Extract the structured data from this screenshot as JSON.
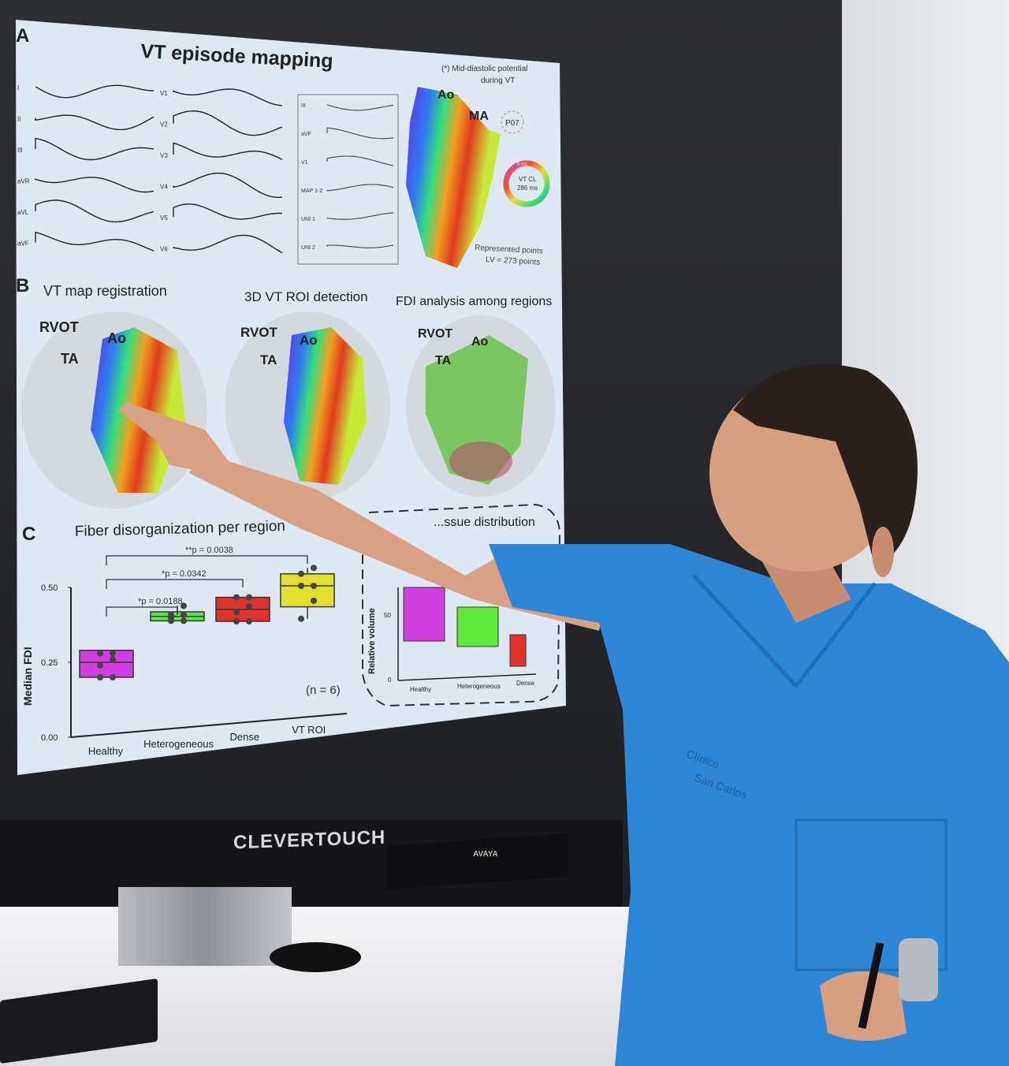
{
  "tv": {
    "brand": "CLEVERTOUCH",
    "soundbar_brand": "AVAYA"
  },
  "slide": {
    "panel_a": {
      "letter": "A",
      "title": "VT episode mapping",
      "leads_left": [
        "I",
        "II",
        "III",
        "aVR",
        "aVL",
        "aVF"
      ],
      "leads_right": [
        "V1",
        "V2",
        "V3",
        "V4",
        "V5",
        "V6"
      ],
      "inset_labels": [
        "III",
        "aVF",
        "V1",
        "MAP 1-2",
        "UNI 1",
        "UNI 2"
      ],
      "note_line1": "(*) Mid-diastolic  potential",
      "note_line2": "during VT",
      "label_ao": "Ao",
      "label_ma": "MA",
      "label_p07": "P07",
      "ring_top": "0 ms",
      "ring_line1": "VT CL",
      "ring_line2": "286 ms",
      "points_line1": "Represented points",
      "points_line2": "LV = 273 points"
    },
    "panel_b": {
      "letter": "B",
      "titles": [
        "VT map registration",
        "3D VT ROI detection",
        "FDI analysis among regions"
      ],
      "labels": {
        "rvot": "RVOT",
        "ta": "TA",
        "ao": "Ao"
      }
    },
    "panel_c": {
      "letter": "C",
      "title": "Fiber disorganization per region",
      "right_title": "...ssue distribution",
      "chart_data": {
        "type": "box",
        "ylabel": "Median FDI",
        "ylim": [
          0,
          0.5
        ],
        "yticks": [
          "0.00",
          "0.25",
          "0.50"
        ],
        "categories": [
          "Healthy",
          "Heterogeneous",
          "Dense",
          "VT ROI"
        ],
        "colors": [
          "#d23fe0",
          "#5ee83a",
          "#e0312a",
          "#e2e02a"
        ],
        "boxes": [
          {
            "q1": 0.2,
            "median": 0.25,
            "q3": 0.29,
            "min": 0.2,
            "max": 0.29,
            "points": [
              0.2,
              0.2,
              0.24,
              0.26,
              0.28,
              0.28
            ]
          },
          {
            "q1": 0.37,
            "median": 0.385,
            "q3": 0.4,
            "min": 0.37,
            "max": 0.42,
            "points": [
              0.37,
              0.37,
              0.38,
              0.39,
              0.39,
              0.42
            ]
          },
          {
            "q1": 0.35,
            "median": 0.39,
            "q3": 0.43,
            "min": 0.35,
            "max": 0.43,
            "points": [
              0.35,
              0.35,
              0.38,
              0.4,
              0.43,
              0.43
            ]
          },
          {
            "q1": 0.38,
            "median": 0.45,
            "q3": 0.49,
            "min": 0.34,
            "max": 0.51,
            "points": [
              0.34,
              0.4,
              0.45,
              0.45,
              0.49,
              0.51
            ]
          }
        ],
        "comparisons": [
          "*p = 0.0188",
          "*p = 0.0342",
          "**p = 0.0038"
        ],
        "n_label": "(n = 6)"
      },
      "inset_chart": {
        "ylabel": "Relative volume",
        "yticks": [
          "0",
          "50"
        ],
        "categories": [
          "Healthy",
          "Heterogeneous",
          "Dense"
        ]
      }
    }
  },
  "scrubs_text": [
    "Clínico",
    "San Carlos"
  ]
}
